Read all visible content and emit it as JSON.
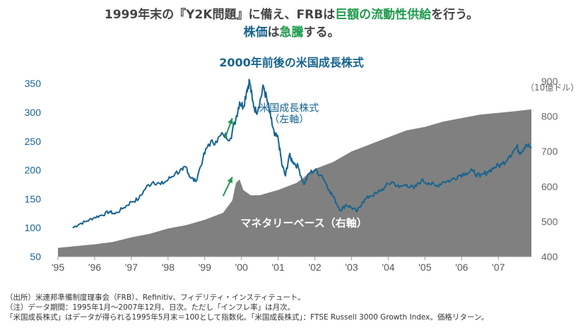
{
  "headline": {
    "line1": [
      {
        "text": "1999年末の『Y2K問題』に備え、FRBは",
        "style": "plain"
      },
      {
        "text": "巨額の流動性供給",
        "style": "green"
      },
      {
        "text": "を行う。",
        "style": "plain"
      }
    ],
    "line2": [
      {
        "text": "株価",
        "style": "blue"
      },
      {
        "text": "は",
        "style": "plain"
      },
      {
        "text": "急騰",
        "style": "green"
      },
      {
        "text": "する。",
        "style": "plain"
      }
    ]
  },
  "colors": {
    "line": "#17648f",
    "area": "#808080",
    "arrow": "#1e9b4c",
    "headline_blue": "#17648f",
    "headline_green": "#1e9b4c"
  },
  "chart_data": {
    "type": "line+area",
    "title": "2000年前後の米国成長株式",
    "x_ticks": [
      "'95",
      "'96",
      "'97",
      "'98",
      "'99",
      "'00",
      "'01",
      "'02",
      "'03",
      "'04",
      "'05",
      "'06",
      "'07"
    ],
    "xlim": [
      1995.0,
      2007.9
    ],
    "y_left": {
      "ticks": [
        50,
        100,
        150,
        200,
        250,
        300,
        350
      ],
      "lim": [
        50,
        360
      ]
    },
    "y_right": {
      "ticks": [
        400,
        500,
        600,
        700,
        800,
        900
      ],
      "lim": [
        400,
        910
      ],
      "unit": "（10億ドル）"
    },
    "series": [
      {
        "name": "米国成長株式",
        "axis_label": "（左軸）",
        "axis": "left",
        "style": "line",
        "points": [
          [
            1995.4,
            100
          ],
          [
            1995.6,
            107
          ],
          [
            1995.8,
            112
          ],
          [
            1996.0,
            118
          ],
          [
            1996.2,
            122
          ],
          [
            1996.4,
            128
          ],
          [
            1996.55,
            124
          ],
          [
            1996.8,
            135
          ],
          [
            1997.0,
            145
          ],
          [
            1997.2,
            150
          ],
          [
            1997.4,
            170
          ],
          [
            1997.6,
            180
          ],
          [
            1997.8,
            175
          ],
          [
            1998.0,
            183
          ],
          [
            1998.2,
            195
          ],
          [
            1998.4,
            200
          ],
          [
            1998.5,
            205
          ],
          [
            1998.6,
            188
          ],
          [
            1998.75,
            180
          ],
          [
            1998.95,
            220
          ],
          [
            1999.1,
            245
          ],
          [
            1999.3,
            250
          ],
          [
            1999.5,
            262
          ],
          [
            1999.7,
            255
          ],
          [
            1999.85,
            290
          ],
          [
            1999.95,
            318
          ],
          [
            2000.05,
            310
          ],
          [
            2000.15,
            340
          ],
          [
            2000.22,
            355
          ],
          [
            2000.3,
            320
          ],
          [
            2000.4,
            300
          ],
          [
            2000.5,
            318
          ],
          [
            2000.6,
            345
          ],
          [
            2000.7,
            320
          ],
          [
            2000.8,
            290
          ],
          [
            2000.9,
            260
          ],
          [
            2001.0,
            255
          ],
          [
            2001.1,
            210
          ],
          [
            2001.2,
            190
          ],
          [
            2001.3,
            225
          ],
          [
            2001.4,
            215
          ],
          [
            2001.55,
            205
          ],
          [
            2001.7,
            175
          ],
          [
            2001.85,
            195
          ],
          [
            2002.0,
            200
          ],
          [
            2002.2,
            190
          ],
          [
            2002.4,
            165
          ],
          [
            2002.55,
            148
          ],
          [
            2002.7,
            130
          ],
          [
            2002.85,
            140
          ],
          [
            2003.0,
            135
          ],
          [
            2003.15,
            128
          ],
          [
            2003.3,
            145
          ],
          [
            2003.5,
            155
          ],
          [
            2003.7,
            160
          ],
          [
            2003.9,
            170
          ],
          [
            2004.1,
            180
          ],
          [
            2004.3,
            170
          ],
          [
            2004.5,
            175
          ],
          [
            2004.7,
            168
          ],
          [
            2004.9,
            182
          ],
          [
            2005.1,
            178
          ],
          [
            2005.3,
            172
          ],
          [
            2005.5,
            180
          ],
          [
            2005.7,
            182
          ],
          [
            2005.9,
            190
          ],
          [
            2006.1,
            195
          ],
          [
            2006.3,
            198
          ],
          [
            2006.5,
            188
          ],
          [
            2006.7,
            197
          ],
          [
            2006.9,
            205
          ],
          [
            2007.1,
            210
          ],
          [
            2007.3,
            225
          ],
          [
            2007.5,
            240
          ],
          [
            2007.6,
            230
          ],
          [
            2007.75,
            245
          ],
          [
            2007.9,
            238
          ]
        ]
      },
      {
        "name": "マネタリーベース（右軸）",
        "axis": "right",
        "style": "area",
        "points": [
          [
            1995.0,
            425
          ],
          [
            1995.5,
            430
          ],
          [
            1996.0,
            435
          ],
          [
            1996.5,
            442
          ],
          [
            1997.0,
            455
          ],
          [
            1997.5,
            465
          ],
          [
            1998.0,
            480
          ],
          [
            1998.5,
            490
          ],
          [
            1999.0,
            505
          ],
          [
            1999.5,
            525
          ],
          [
            1999.75,
            560
          ],
          [
            1999.85,
            610
          ],
          [
            1999.95,
            620
          ],
          [
            2000.05,
            590
          ],
          [
            2000.25,
            575
          ],
          [
            2000.5,
            575
          ],
          [
            2001.0,
            590
          ],
          [
            2001.5,
            610
          ],
          [
            2002.0,
            650
          ],
          [
            2002.5,
            670
          ],
          [
            2003.0,
            700
          ],
          [
            2003.5,
            720
          ],
          [
            2004.0,
            740
          ],
          [
            2004.5,
            760
          ],
          [
            2005.0,
            770
          ],
          [
            2005.5,
            785
          ],
          [
            2006.0,
            795
          ],
          [
            2006.5,
            805
          ],
          [
            2007.0,
            810
          ],
          [
            2007.5,
            815
          ],
          [
            2007.9,
            820
          ]
        ]
      }
    ],
    "annotations": [
      {
        "text": "米国成長株式",
        "at": [
          2001.3,
          302
        ],
        "color": "#17648f"
      },
      {
        "text": "（左軸）",
        "at": [
          2001.3,
          282
        ],
        "color": "#17648f"
      },
      {
        "text": "マネタリーベース（右軸）",
        "at": [
          2001.7,
          102
        ],
        "color": "#ffffff"
      }
    ]
  },
  "notes": [
    "（出所）米連邦準備制度理事会（FRB）、Refinitiv、フィデリティ・インスティテュート。",
    "（注）データ期間：1995年1月～2007年12月、日次。ただし「インフレ率」は月次。",
    "「米国成長株式」はデータが得られる1995年5月末＝100として指数化。「米国成長株式」：FTSE Russell 3000 Growth Index。価格リターン。"
  ]
}
